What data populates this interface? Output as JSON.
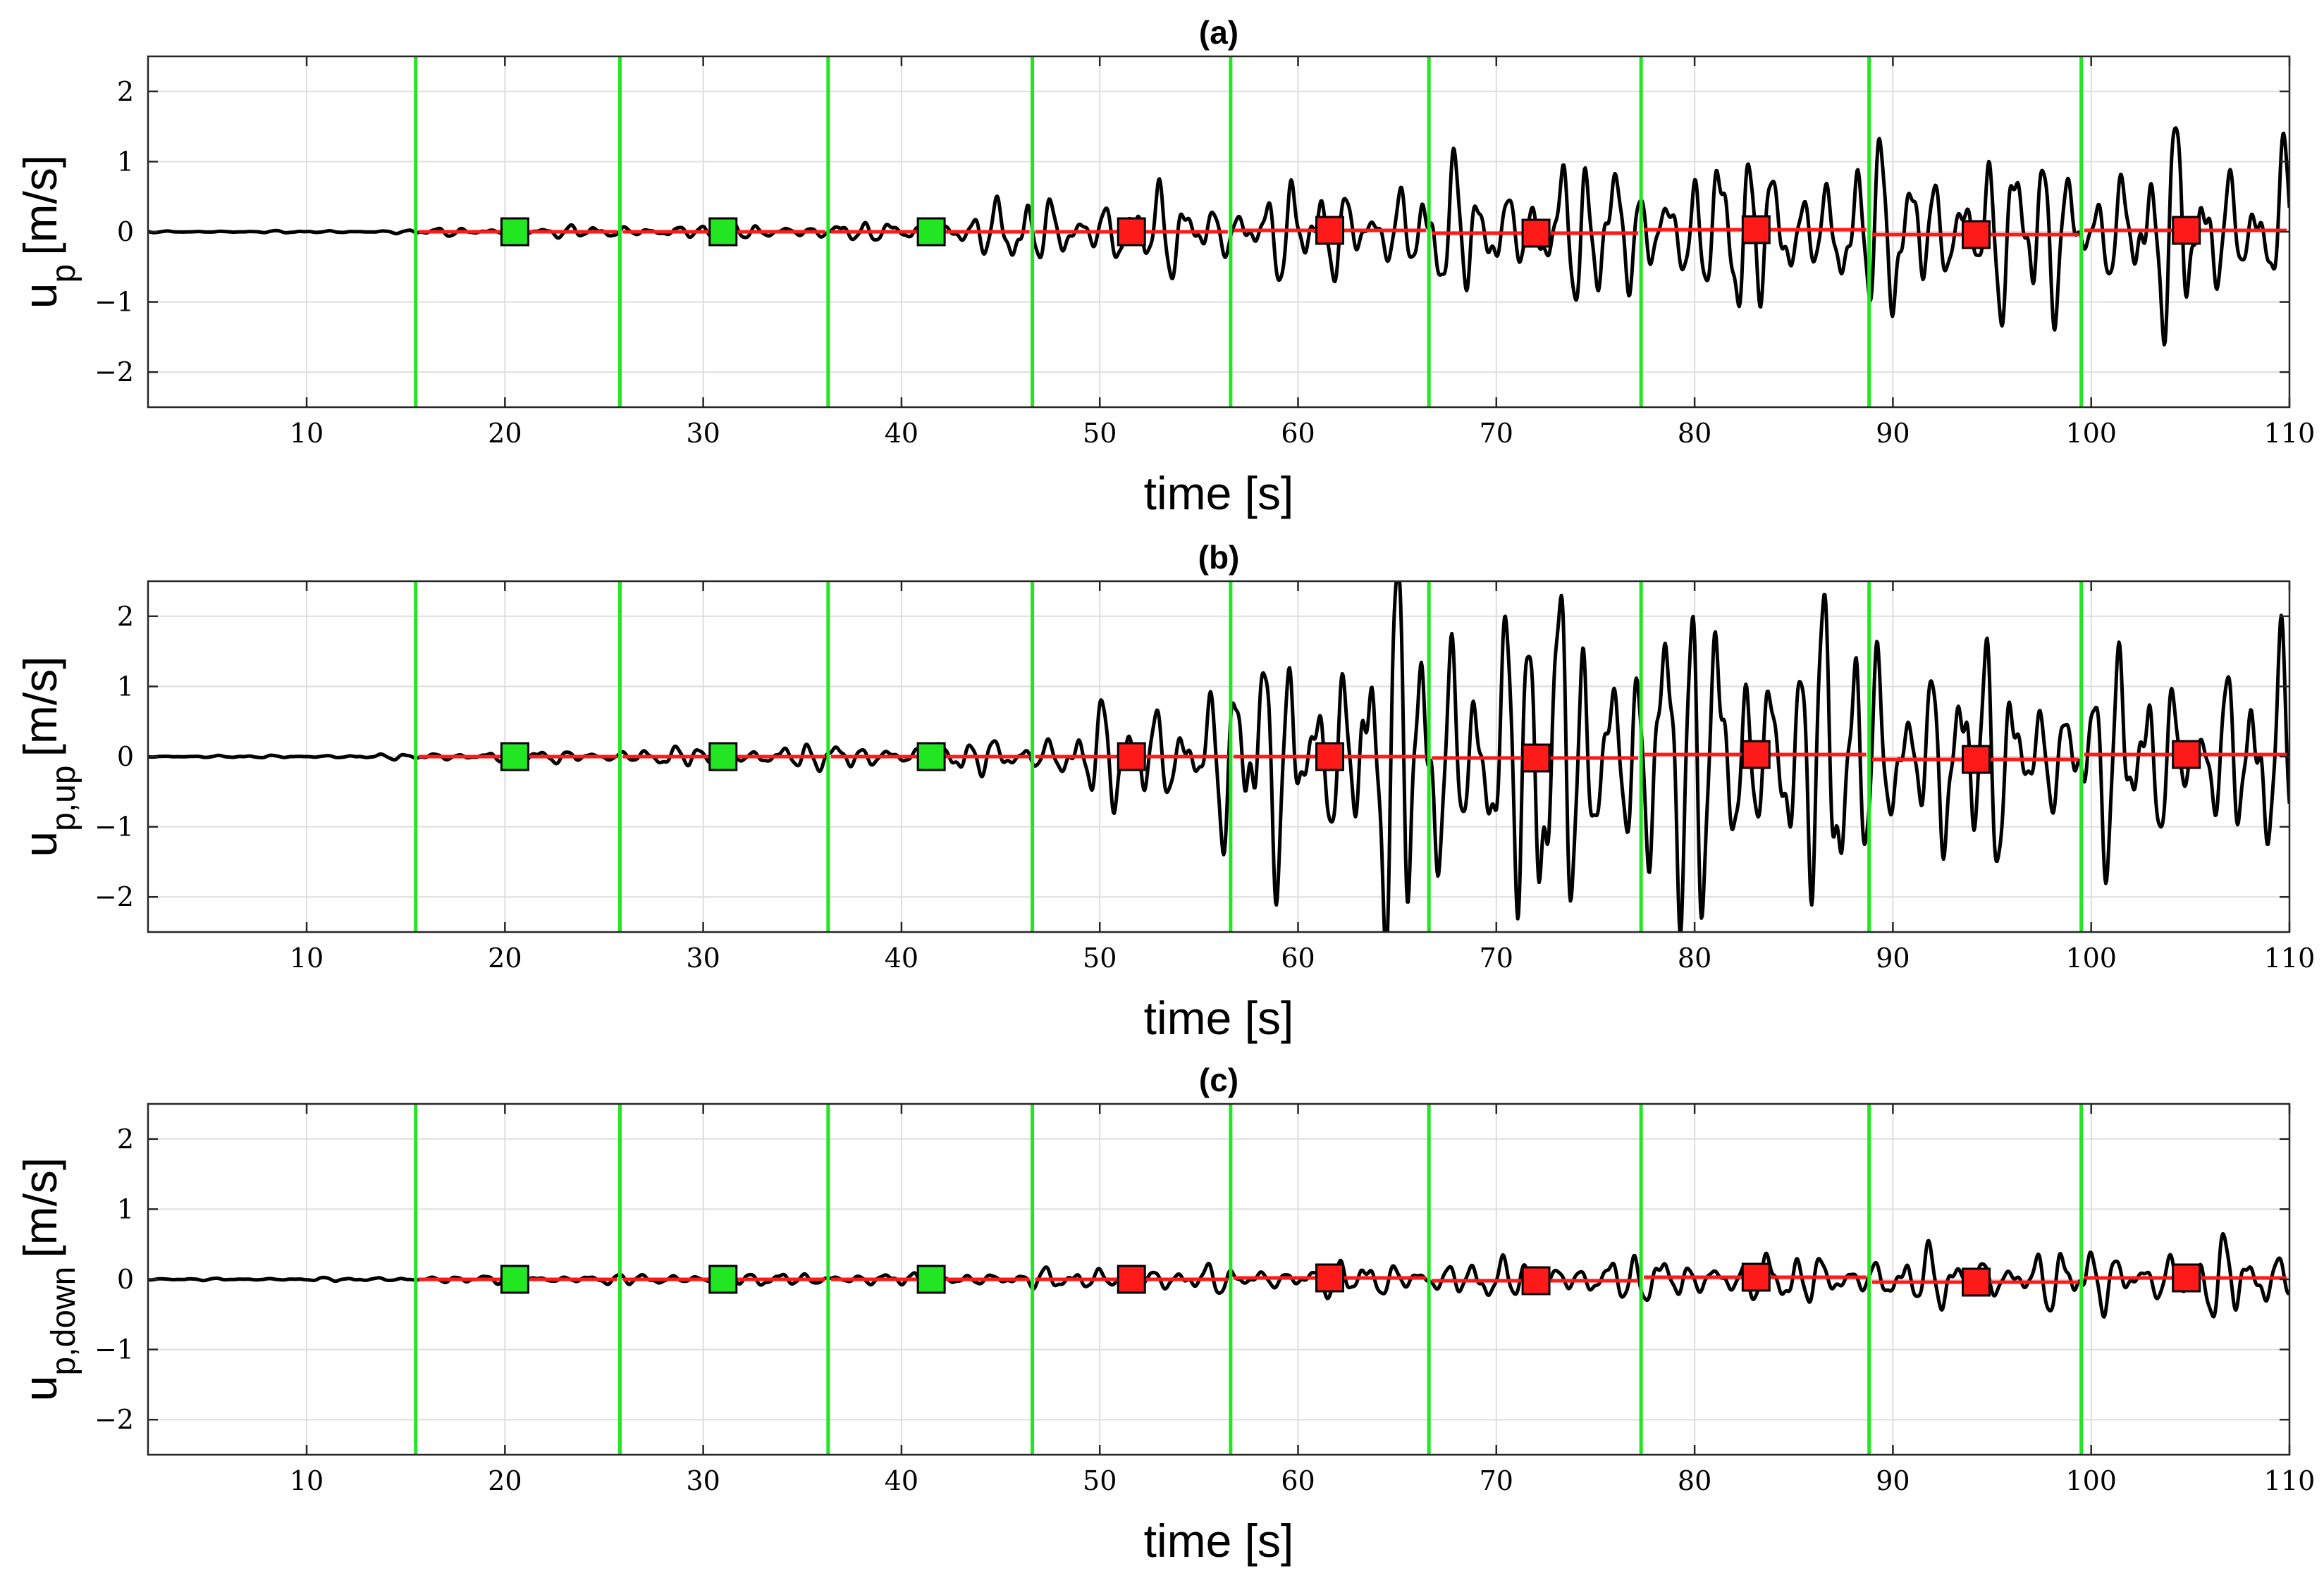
{
  "chart_data": [
    {
      "type": "line",
      "title": "(a)",
      "ylabel_main": "u",
      "ylabel_sub": "p",
      "ylabel_unit": "[m/s]",
      "xlabel": "time [s]",
      "xlim": [
        2,
        110
      ],
      "ylim": [
        -2.5,
        2.5
      ],
      "xticks": [
        10,
        20,
        30,
        40,
        50,
        60,
        70,
        80,
        90,
        100,
        110
      ],
      "yticks": [
        -2,
        -1,
        0,
        1,
        2
      ],
      "grid": true,
      "signal_color": "#000000",
      "signal_envelope": [
        [
          2,
          0.01
        ],
        [
          14,
          0.02
        ],
        [
          15.5,
          0.05
        ],
        [
          26,
          0.1
        ],
        [
          36,
          0.13
        ],
        [
          41,
          0.15
        ],
        [
          46,
          0.55
        ],
        [
          51,
          0.6
        ],
        [
          56,
          0.65
        ],
        [
          61,
          0.75
        ],
        [
          66,
          0.9
        ],
        [
          71,
          1.05
        ],
        [
          77,
          1.15
        ],
        [
          83,
          1.25
        ],
        [
          89,
          1.25
        ],
        [
          94,
          1.35
        ],
        [
          100,
          1.3
        ],
        [
          105,
          1.45
        ],
        [
          110,
          1.5
        ]
      ],
      "boundaries": [
        15.5,
        25.8,
        36.3,
        46.6,
        56.6,
        66.6,
        77.3,
        88.8,
        99.5
      ],
      "boundary_color": "#22e622",
      "segment_means": [
        {
          "x0": 15.5,
          "x1": 25.8,
          "y": 0.0,
          "marker_x": 20.5,
          "marker_color": "#22e622"
        },
        {
          "x0": 25.8,
          "x1": 36.3,
          "y": 0.0,
          "marker_x": 31.0,
          "marker_color": "#22e622"
        },
        {
          "x0": 36.3,
          "x1": 46.6,
          "y": 0.0,
          "marker_x": 41.5,
          "marker_color": "#22e622"
        },
        {
          "x0": 46.6,
          "x1": 56.6,
          "y": 0.0,
          "marker_x": 51.6,
          "marker_color": "#ff1a1a"
        },
        {
          "x0": 56.6,
          "x1": 66.6,
          "y": 0.02,
          "marker_x": 61.6,
          "marker_color": "#ff1a1a"
        },
        {
          "x0": 66.6,
          "x1": 77.3,
          "y": -0.02,
          "marker_x": 72.0,
          "marker_color": "#ff1a1a"
        },
        {
          "x0": 77.3,
          "x1": 88.8,
          "y": 0.03,
          "marker_x": 83.1,
          "marker_color": "#ff1a1a"
        },
        {
          "x0": 88.8,
          "x1": 99.5,
          "y": -0.04,
          "marker_x": 94.2,
          "marker_color": "#ff1a1a"
        },
        {
          "x0": 99.5,
          "x1": 110,
          "y": 0.02,
          "marker_x": 104.8,
          "marker_color": "#ff1a1a"
        }
      ],
      "mean_line_color": "#ff1a1a"
    },
    {
      "type": "line",
      "title": "(b)",
      "ylabel_main": "u",
      "ylabel_sub": "p,up",
      "ylabel_unit": "[m/s]",
      "xlabel": "time [s]",
      "xlim": [
        2,
        110
      ],
      "ylim": [
        -2.5,
        2.5
      ],
      "xticks": [
        10,
        20,
        30,
        40,
        50,
        60,
        70,
        80,
        90,
        100,
        110
      ],
      "yticks": [
        -2,
        -1,
        0,
        1,
        2
      ],
      "grid": true,
      "signal_color": "#000000",
      "signal_envelope": [
        [
          2,
          0.01
        ],
        [
          14,
          0.03
        ],
        [
          15.5,
          0.07
        ],
        [
          26,
          0.12
        ],
        [
          36,
          0.2
        ],
        [
          41,
          0.22
        ],
        [
          46,
          0.3
        ],
        [
          51,
          0.8
        ],
        [
          56,
          1.4
        ],
        [
          61,
          2.1
        ],
        [
          66,
          2.8
        ],
        [
          71,
          2.7
        ],
        [
          77,
          2.6
        ],
        [
          83,
          2.4
        ],
        [
          89,
          2.2
        ],
        [
          94,
          1.6
        ],
        [
          100,
          1.5
        ],
        [
          105,
          1.5
        ],
        [
          110,
          1.6
        ]
      ],
      "boundaries": [
        15.5,
        25.8,
        36.3,
        46.6,
        56.6,
        66.6,
        77.3,
        88.8,
        99.5
      ],
      "boundary_color": "#22e622",
      "segment_means": [
        {
          "x0": 15.5,
          "x1": 25.8,
          "y": 0.0,
          "marker_x": 20.5,
          "marker_color": "#22e622"
        },
        {
          "x0": 25.8,
          "x1": 36.3,
          "y": 0.0,
          "marker_x": 31.0,
          "marker_color": "#22e622"
        },
        {
          "x0": 36.3,
          "x1": 46.6,
          "y": 0.0,
          "marker_x": 41.5,
          "marker_color": "#22e622"
        },
        {
          "x0": 46.6,
          "x1": 56.6,
          "y": 0.0,
          "marker_x": 51.6,
          "marker_color": "#ff1a1a"
        },
        {
          "x0": 56.6,
          "x1": 66.6,
          "y": 0.0,
          "marker_x": 61.6,
          "marker_color": "#ff1a1a"
        },
        {
          "x0": 66.6,
          "x1": 77.3,
          "y": -0.02,
          "marker_x": 72.0,
          "marker_color": "#ff1a1a"
        },
        {
          "x0": 77.3,
          "x1": 88.8,
          "y": 0.03,
          "marker_x": 83.1,
          "marker_color": "#ff1a1a"
        },
        {
          "x0": 88.8,
          "x1": 99.5,
          "y": -0.04,
          "marker_x": 94.2,
          "marker_color": "#ff1a1a"
        },
        {
          "x0": 99.5,
          "x1": 110,
          "y": 0.03,
          "marker_x": 104.8,
          "marker_color": "#ff1a1a"
        }
      ],
      "mean_line_color": "#ff1a1a"
    },
    {
      "type": "line",
      "title": "(c)",
      "ylabel_main": "u",
      "ylabel_sub": "p,down",
      "ylabel_unit": "[m/s]",
      "xlabel": "time [s]",
      "xlim": [
        2,
        110
      ],
      "ylim": [
        -2.5,
        2.5
      ],
      "xticks": [
        10,
        20,
        30,
        40,
        50,
        60,
        70,
        80,
        90,
        100,
        110
      ],
      "yticks": [
        -2,
        -1,
        0,
        1,
        2
      ],
      "grid": true,
      "signal_color": "#000000",
      "signal_envelope": [
        [
          2,
          0.01
        ],
        [
          14,
          0.03
        ],
        [
          15.5,
          0.05
        ],
        [
          26,
          0.08
        ],
        [
          36,
          0.1
        ],
        [
          41,
          0.12
        ],
        [
          46,
          0.15
        ],
        [
          51,
          0.17
        ],
        [
          56,
          0.2
        ],
        [
          61,
          0.25
        ],
        [
          66,
          0.3
        ],
        [
          71,
          0.3
        ],
        [
          77,
          0.35
        ],
        [
          83,
          0.38
        ],
        [
          89,
          0.4
        ],
        [
          94,
          0.45
        ],
        [
          100,
          0.5
        ],
        [
          105,
          0.55
        ],
        [
          110,
          0.6
        ]
      ],
      "boundaries": [
        15.5,
        25.8,
        36.3,
        46.6,
        56.6,
        66.6,
        77.3,
        88.8,
        99.5
      ],
      "boundary_color": "#22e622",
      "segment_means": [
        {
          "x0": 15.5,
          "x1": 25.8,
          "y": 0.0,
          "marker_x": 20.5,
          "marker_color": "#22e622"
        },
        {
          "x0": 25.8,
          "x1": 36.3,
          "y": 0.0,
          "marker_x": 31.0,
          "marker_color": "#22e622"
        },
        {
          "x0": 36.3,
          "x1": 46.6,
          "y": 0.0,
          "marker_x": 41.5,
          "marker_color": "#22e622"
        },
        {
          "x0": 46.6,
          "x1": 56.6,
          "y": 0.0,
          "marker_x": 51.6,
          "marker_color": "#ff1a1a"
        },
        {
          "x0": 56.6,
          "x1": 66.6,
          "y": 0.02,
          "marker_x": 61.6,
          "marker_color": "#ff1a1a"
        },
        {
          "x0": 66.6,
          "x1": 77.3,
          "y": -0.02,
          "marker_x": 72.0,
          "marker_color": "#ff1a1a"
        },
        {
          "x0": 77.3,
          "x1": 88.8,
          "y": 0.03,
          "marker_x": 83.1,
          "marker_color": "#ff1a1a"
        },
        {
          "x0": 88.8,
          "x1": 99.5,
          "y": -0.04,
          "marker_x": 94.2,
          "marker_color": "#ff1a1a"
        },
        {
          "x0": 99.5,
          "x1": 110,
          "y": 0.02,
          "marker_x": 104.8,
          "marker_color": "#ff1a1a"
        }
      ],
      "mean_line_color": "#ff1a1a"
    }
  ]
}
